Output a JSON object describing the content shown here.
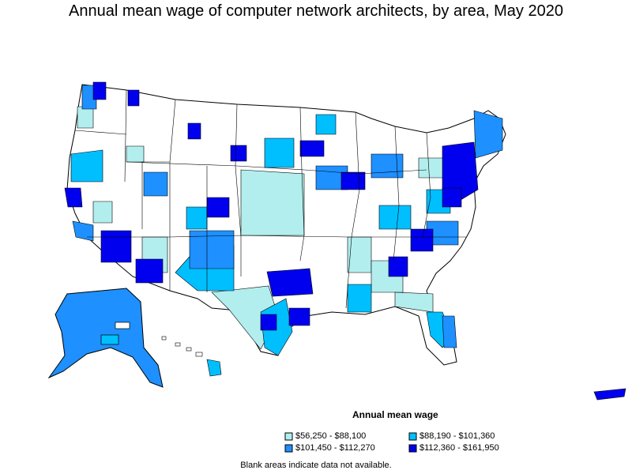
{
  "title": "Annual mean wage of computer network architects, by area, May 2020",
  "legend": {
    "title": "Annual mean wage",
    "items": [
      {
        "label": "$56,250 - $88,100",
        "color": "#b3eeee"
      },
      {
        "label": "$88,190 - $101,360",
        "color": "#00bfff"
      },
      {
        "label": "$101,450 - $112,270",
        "color": "#1e90ff"
      },
      {
        "label": "$112,360 - $161,950",
        "color": "#0000ee"
      }
    ]
  },
  "note": "Blank areas indicate data not available."
}
